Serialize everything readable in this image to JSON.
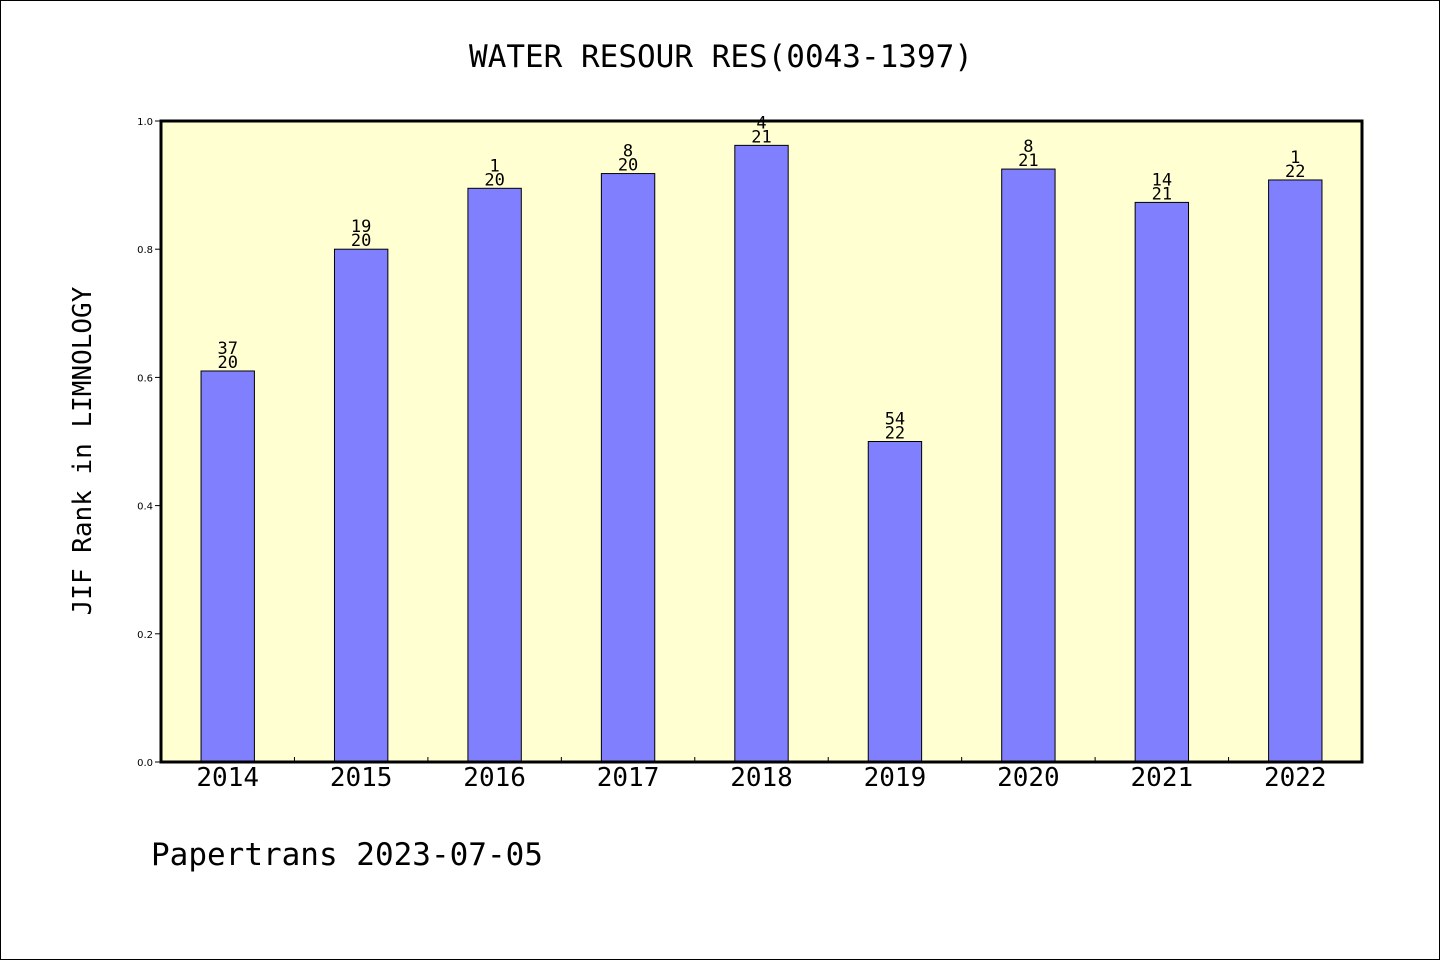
{
  "chart_data": {
    "type": "bar",
    "title": "WATER RESOUR RES(0043-1397)",
    "ylabel": "JIF Rank in LIMNOLOGY",
    "xlabel": "",
    "footer": "Papertrans 2023-07-05",
    "ylim": [
      0,
      1.0
    ],
    "yticks": [
      "0.0",
      "0.2",
      "0.4",
      "0.6",
      "0.8",
      "1.0"
    ],
    "categories": [
      "2014",
      "2015",
      "2016",
      "2017",
      "2018",
      "2019",
      "2020",
      "2021",
      "2022"
    ],
    "values": [
      0.61,
      0.8,
      0.895,
      0.918,
      0.962,
      0.5,
      0.925,
      0.873,
      0.908
    ],
    "labels_top": [
      "37",
      "19",
      "1",
      "8",
      "4",
      "54",
      "8",
      "14",
      "1"
    ],
    "labels_bottom": [
      "20",
      "20",
      "20",
      "20",
      "21",
      "22",
      "21",
      "21",
      "22"
    ],
    "grid": false,
    "colors": {
      "plot_background": "#ffffd2",
      "bar_fill": "#8080ff",
      "bar_stroke": "#000000",
      "axis": "#000000"
    }
  }
}
